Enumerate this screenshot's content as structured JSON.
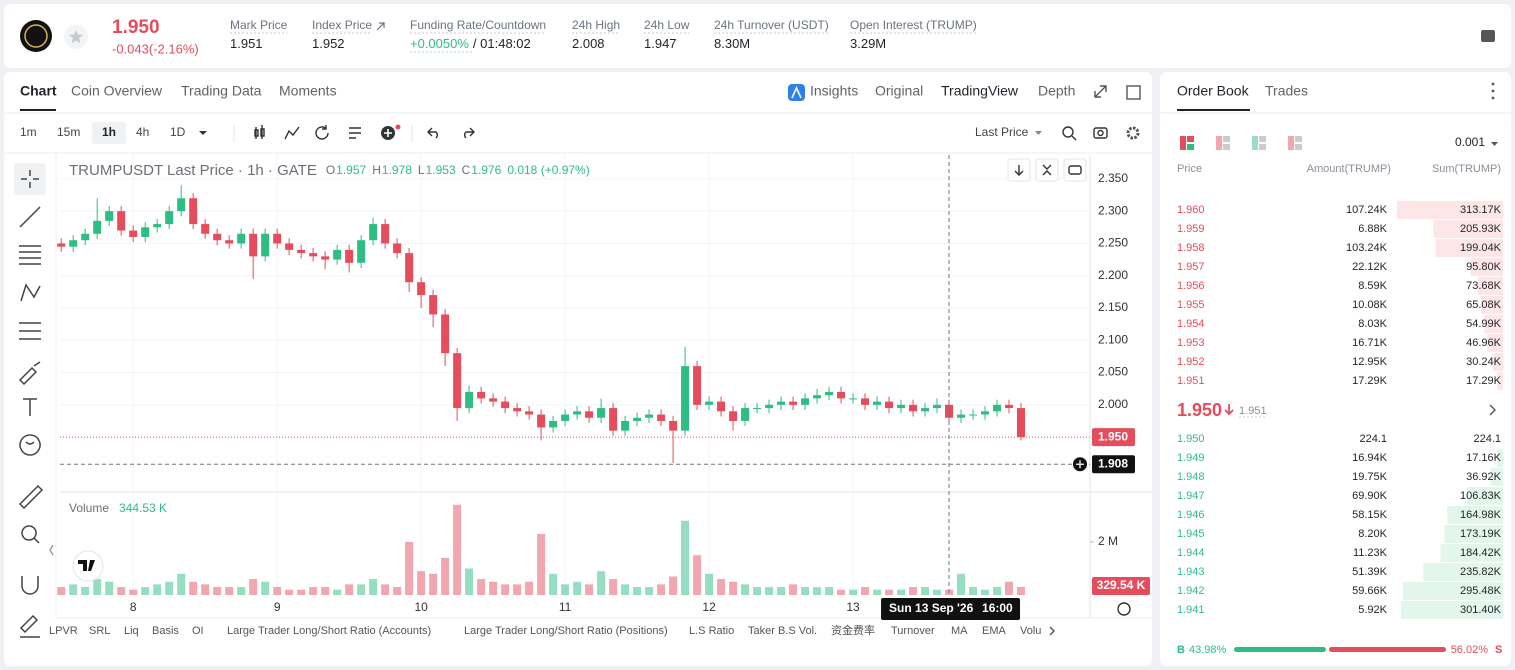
{
  "header": {
    "price": "1.950",
    "change": "-0.043(-2.16%)",
    "stats": [
      {
        "label": "Mark Price",
        "value": "1.951"
      },
      {
        "label": "Index Price",
        "value": "1.952"
      },
      {
        "label": "Funding Rate/Countdown",
        "value": "+0.0050%",
        "value_extra": "/ 01:48:02"
      },
      {
        "label": "24h High",
        "value": "2.008"
      },
      {
        "label": "24h Low",
        "value": "1.947"
      },
      {
        "label": "24h Turnover (USDT)",
        "value": "8.30M"
      },
      {
        "label": "Open Interest (TRUMP)",
        "value": "3.29M"
      }
    ]
  },
  "tabs": [
    "Chart",
    "Coin Overview",
    "Trading Data",
    "Moments"
  ],
  "view_tabs": [
    "Insights",
    "Original",
    "TradingView",
    "Depth"
  ],
  "intervals": [
    "1m",
    "15m",
    "1h",
    "4h",
    "1D"
  ],
  "price_type": "Last Price",
  "chart_data": {
    "type": "candlestick",
    "title": "TRUMPUSDT Last Price · 1h · GATE",
    "ohlc_legend": [
      {
        "key": "O",
        "value": "1.957"
      },
      {
        "key": "H",
        "value": "1.978"
      },
      {
        "key": "L",
        "value": "1.953"
      },
      {
        "key": "C",
        "value": "1.976"
      }
    ],
    "legend_change": "0.018 (+0.97%)",
    "up_color": "#2ebd85",
    "down_color": "#e54d5c",
    "x": [
      0,
      2,
      4,
      6,
      8,
      10,
      12,
      14,
      16,
      18,
      20,
      22,
      24,
      26,
      28,
      30,
      32,
      34,
      36,
      38,
      40,
      42,
      44,
      46,
      48,
      50,
      52,
      54,
      56,
      58,
      60,
      62,
      64,
      66,
      68,
      70,
      72,
      74,
      76,
      78,
      80,
      82,
      84,
      86,
      88,
      90,
      92,
      94,
      96,
      98,
      100,
      102,
      104,
      106,
      108,
      110,
      112,
      114,
      116,
      118,
      120,
      122,
      124,
      126,
      128,
      130,
      132,
      134,
      136,
      138,
      140,
      142,
      144,
      146,
      148,
      150,
      152,
      154,
      156,
      158,
      160
    ],
    "open": [
      2.25,
      2.245,
      2.255,
      2.265,
      2.285,
      2.3,
      2.27,
      2.26,
      2.275,
      2.28,
      2.3,
      2.32,
      2.28,
      2.265,
      2.255,
      2.25,
      2.265,
      2.23,
      2.265,
      2.25,
      2.24,
      2.235,
      2.23,
      2.225,
      2.24,
      2.22,
      2.255,
      2.28,
      2.25,
      2.235,
      2.19,
      2.17,
      2.14,
      2.08,
      1.995,
      2.02,
      2.01,
      2.005,
      1.995,
      1.99,
      1.985,
      1.965,
      1.975,
      1.985,
      1.99,
      1.98,
      1.995,
      1.96,
      1.975,
      1.98,
      1.985,
      1.975,
      1.96,
      2.06,
      2.0,
      2.005,
      1.99,
      1.975,
      1.995,
      1.995,
      2.0,
      2.005,
      2.0,
      2.01,
      2.015,
      2.02,
      2.01,
      2.01,
      2.0,
      2.005,
      1.995,
      2.0,
      1.99,
      1.995,
      2.0,
      1.98,
      1.985,
      1.985,
      1.99,
      2.0,
      1.995
    ],
    "high": [
      2.258,
      2.263,
      2.273,
      2.32,
      2.308,
      2.308,
      2.278,
      2.283,
      2.288,
      2.308,
      2.34,
      2.328,
      2.288,
      2.273,
      2.263,
      2.273,
      2.273,
      2.273,
      2.273,
      2.258,
      2.248,
      2.243,
      2.238,
      2.248,
      2.248,
      2.263,
      2.29,
      2.288,
      2.258,
      2.243,
      2.198,
      2.178,
      2.148,
      2.088,
      2.03,
      2.028,
      2.018,
      2.013,
      2.003,
      1.998,
      1.993,
      1.983,
      1.993,
      1.998,
      1.998,
      2.01,
      2.003,
      1.983,
      1.988,
      1.993,
      1.993,
      1.983,
      2.09,
      2.068,
      2.013,
      2.013,
      1.998,
      2.003,
      2.003,
      2.008,
      2.013,
      2.013,
      2.018,
      2.025,
      2.028,
      2.028,
      2.018,
      2.018,
      2.013,
      2.013,
      2.008,
      2.008,
      2.003,
      2.01,
      2.008,
      1.993,
      1.993,
      1.998,
      2.008,
      2.008,
      2.003
    ],
    "low": [
      2.237,
      2.237,
      2.247,
      2.257,
      2.277,
      2.262,
      2.252,
      2.252,
      2.267,
      2.272,
      2.292,
      2.272,
      2.257,
      2.247,
      2.242,
      2.242,
      2.195,
      2.222,
      2.242,
      2.232,
      2.227,
      2.222,
      2.21,
      2.217,
      2.205,
      2.212,
      2.247,
      2.242,
      2.227,
      2.175,
      2.15,
      2.12,
      2.06,
      1.975,
      1.987,
      2.002,
      1.997,
      1.987,
      1.982,
      1.977,
      1.945,
      1.957,
      1.967,
      1.977,
      1.972,
      1.972,
      1.952,
      1.952,
      1.967,
      1.972,
      1.967,
      1.91,
      1.952,
      1.992,
      1.992,
      1.982,
      1.96,
      1.967,
      1.987,
      1.987,
      1.992,
      1.992,
      1.992,
      2.002,
      2.007,
      2.002,
      2.002,
      1.992,
      1.992,
      1.987,
      1.987,
      1.982,
      1.982,
      1.987,
      1.972,
      1.972,
      1.977,
      1.977,
      1.982,
      1.987,
      1.945
    ],
    "close": [
      2.245,
      2.255,
      2.265,
      2.285,
      2.3,
      2.27,
      2.26,
      2.275,
      2.28,
      2.3,
      2.32,
      2.28,
      2.265,
      2.255,
      2.25,
      2.265,
      2.23,
      2.265,
      2.25,
      2.24,
      2.235,
      2.23,
      2.225,
      2.24,
      2.22,
      2.255,
      2.28,
      2.25,
      2.235,
      2.19,
      2.17,
      2.14,
      2.08,
      1.995,
      2.02,
      2.01,
      2.005,
      1.995,
      1.99,
      1.985,
      1.965,
      1.975,
      1.985,
      1.99,
      1.98,
      1.995,
      1.96,
      1.975,
      1.98,
      1.985,
      1.975,
      1.96,
      2.06,
      2.0,
      2.005,
      1.99,
      1.975,
      1.995,
      1.995,
      2.0,
      2.005,
      2.0,
      2.01,
      2.015,
      2.02,
      2.01,
      2.01,
      2.0,
      2.005,
      1.995,
      2.0,
      1.99,
      1.995,
      2.0,
      1.98,
      1.985,
      1.985,
      1.99,
      2.0,
      1.995,
      1.95
    ],
    "xlim": [
      -0.2,
      171.5
    ],
    "xticks": [
      {
        "value": 12,
        "label": "8"
      },
      {
        "value": 36,
        "label": "9"
      },
      {
        "value": 60,
        "label": "10"
      },
      {
        "value": 84,
        "label": "11"
      },
      {
        "value": 108,
        "label": "12"
      },
      {
        "value": 132,
        "label": "13"
      }
    ],
    "ylim": [
      1.865,
      2.387
    ],
    "yticks": [
      {
        "value": 2.35,
        "label": "2.350"
      },
      {
        "value": 2.3,
        "label": "2.300"
      },
      {
        "value": 2.25,
        "label": "2.250"
      },
      {
        "value": 2.2,
        "label": "2.200"
      },
      {
        "value": 2.15,
        "label": "2.150"
      },
      {
        "value": 2.1,
        "label": "2.100"
      },
      {
        "value": 2.05,
        "label": "2.050"
      },
      {
        "value": 2.0,
        "label": "2.000"
      }
    ],
    "grid": true,
    "last_price": {
      "value": 1.95,
      "label": "1.950"
    },
    "crosshair": {
      "x": 148,
      "x_label": "Sun 13 Sep '26",
      "time": "16:00",
      "y": {
        "value": 1.908,
        "label": "1.908"
      }
    },
    "volume": {
      "name": "Volume",
      "value_label": "344.53 K",
      "last_label": "329.54 K",
      "values": [
        0.3,
        0.4,
        0.3,
        0.6,
        0.5,
        0.3,
        0.2,
        0.3,
        0.4,
        0.5,
        0.8,
        0.5,
        0.4,
        0.3,
        0.3,
        0.3,
        0.6,
        0.5,
        0.3,
        0.2,
        0.2,
        0.3,
        0.3,
        0.2,
        0.4,
        0.4,
        0.6,
        0.4,
        0.3,
        2.0,
        0.9,
        0.8,
        1.4,
        3.4,
        1.0,
        0.6,
        0.5,
        0.4,
        0.4,
        0.5,
        2.3,
        0.8,
        0.4,
        0.5,
        0.4,
        0.9,
        0.6,
        0.4,
        0.3,
        0.3,
        0.4,
        0.7,
        2.8,
        1.5,
        0.8,
        0.6,
        0.5,
        0.4,
        0.3,
        0.3,
        0.3,
        0.4,
        0.3,
        0.3,
        0.3,
        0.2,
        0.2,
        0.3,
        0.2,
        0.2,
        0.2,
        0.3,
        0.3,
        0.2,
        0.2,
        0.8,
        0.3,
        0.2,
        0.3,
        0.5,
        0.3
      ],
      "ylim": [
        0,
        3.77
      ],
      "yticks": [
        {
          "value": 2,
          "label": "2 M"
        }
      ]
    }
  },
  "indicators": [
    "LPVR",
    "SRL",
    "Liq",
    "Basis",
    "OI",
    "Large Trader Long/Short Ratio (Accounts)",
    "Large Trader Long/Short Ratio (Positions)",
    "L.S Ratio",
    "Taker B.S Vol.",
    "资金费率",
    "Turnover",
    "MA",
    "EMA",
    "Volu"
  ],
  "order_book": {
    "tabs": [
      "Order Book",
      "Trades"
    ],
    "precision": "0.001",
    "columns": [
      "Price",
      "Amount(TRUMP)",
      "Sum(TRUMP)"
    ],
    "asks": [
      {
        "price": "1.960",
        "amount": "107.24K",
        "sum": {
          "value": 313170,
          "label": "313.17K"
        }
      },
      {
        "price": "1.959",
        "amount": "6.88K",
        "sum": {
          "value": 205930,
          "label": "205.93K"
        }
      },
      {
        "price": "1.958",
        "amount": "103.24K",
        "sum": {
          "value": 199040,
          "label": "199.04K"
        }
      },
      {
        "price": "1.957",
        "amount": "22.12K",
        "sum": {
          "value": 95800,
          "label": "95.80K"
        }
      },
      {
        "price": "1.956",
        "amount": "8.59K",
        "sum": {
          "value": 73680,
          "label": "73.68K"
        }
      },
      {
        "price": "1.955",
        "amount": "10.08K",
        "sum": {
          "value": 65080,
          "label": "65.08K"
        }
      },
      {
        "price": "1.954",
        "amount": "8.03K",
        "sum": {
          "value": 54990,
          "label": "54.99K"
        }
      },
      {
        "price": "1.953",
        "amount": "16.71K",
        "sum": {
          "value": 46960,
          "label": "46.96K"
        }
      },
      {
        "price": "1.952",
        "amount": "12.95K",
        "sum": {
          "value": 30240,
          "label": "30.24K"
        }
      },
      {
        "price": "1.951",
        "amount": "17.29K",
        "sum": {
          "value": 17290,
          "label": "17.29K"
        }
      }
    ],
    "last": {
      "price": "1.950",
      "mark": "1.951"
    },
    "bids": [
      {
        "price": "1.950",
        "amount": "224.1",
        "sum": {
          "value": 224.1,
          "label": "224.1"
        }
      },
      {
        "price": "1.949",
        "amount": "16.94K",
        "sum": {
          "value": 17160,
          "label": "17.16K"
        }
      },
      {
        "price": "1.948",
        "amount": "19.75K",
        "sum": {
          "value": 36920,
          "label": "36.92K"
        }
      },
      {
        "price": "1.947",
        "amount": "69.90K",
        "sum": {
          "value": 106830,
          "label": "106.83K"
        }
      },
      {
        "price": "1.946",
        "amount": "58.15K",
        "sum": {
          "value": 164980,
          "label": "164.98K"
        }
      },
      {
        "price": "1.945",
        "amount": "8.20K",
        "sum": {
          "value": 173190,
          "label": "173.19K"
        }
      },
      {
        "price": "1.944",
        "amount": "11.23K",
        "sum": {
          "value": 184420,
          "label": "184.42K"
        }
      },
      {
        "price": "1.943",
        "amount": "51.39K",
        "sum": {
          "value": 235820,
          "label": "235.82K"
        }
      },
      {
        "price": "1.942",
        "amount": "59.66K",
        "sum": {
          "value": 295480,
          "label": "295.48K"
        }
      },
      {
        "price": "1.941",
        "amount": "5.92K",
        "sum": {
          "value": 301400,
          "label": "301.40K"
        }
      }
    ],
    "ratio": {
      "buy_key": "B",
      "buy": {
        "value": 43.98,
        "label": "43.98%"
      },
      "sell": {
        "value": 56.02,
        "label": "56.02%"
      },
      "sell_key": "S"
    }
  }
}
